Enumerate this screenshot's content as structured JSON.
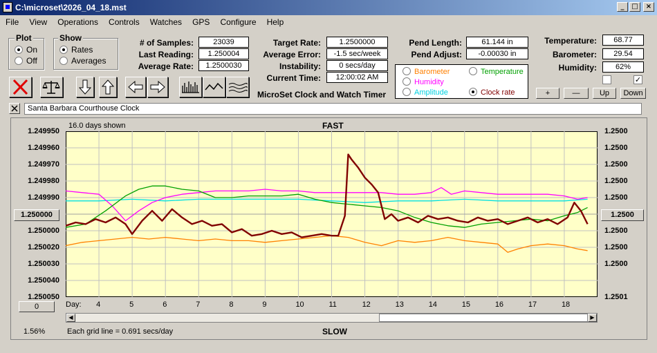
{
  "window": {
    "title": "C:\\microset\\2026_04_18.mst"
  },
  "menu": [
    "File",
    "View",
    "Operations",
    "Controls",
    "Watches",
    "GPS",
    "Configure",
    "Help"
  ],
  "plot_group": {
    "title": "Plot",
    "on": "On",
    "off": "Off",
    "selected": "On"
  },
  "show_group": {
    "title": "Show",
    "rates": "Rates",
    "averages": "Averages",
    "selected": "Rates"
  },
  "stats": {
    "samples_label": "# of Samples:",
    "samples": "23039",
    "last_reading_label": "Last Reading:",
    "last_reading": "1.250004",
    "average_rate_label": "Average Rate:",
    "average_rate": "1.2500030"
  },
  "target": {
    "target_rate_label": "Target Rate:",
    "target_rate": "1.2500000",
    "average_error_label": "Average Error:",
    "average_error": "-1.5 sec/week",
    "instability_label": "Instability:",
    "instability": "0 secs/day",
    "current_time_label": "Current Time:",
    "current_time": "12:00:02 AM",
    "app_name": "MicroSet Clock and Watch Timer"
  },
  "pendulum": {
    "length_label": "Pend Length:",
    "length": "61.144 in",
    "adjust_label": "Pend Adjust:",
    "adjust": "-0.00030 in"
  },
  "legend": {
    "barometer": "Barometer",
    "temperature": "Temperature",
    "humidity": "Humidity",
    "amplitude": "Amplitude",
    "clock_rate": "Clock rate",
    "selected": "Clock rate"
  },
  "environment": {
    "temperature_label": "Temperature:",
    "temperature": "68.77",
    "barometer_label": "Barometer:",
    "barometer": "29.54",
    "humidity_label": "Humidity:",
    "humidity": "62%"
  },
  "scale_buttons": {
    "plus": "+",
    "minus": "—",
    "up": "Up",
    "down": "Down"
  },
  "checkboxes": {
    "left": false,
    "right": true
  },
  "clock_name": "Santa Barbara Courthouse Clock",
  "chart_header": {
    "days_shown": "16.0 days shown",
    "fast": "FAST",
    "slow": "SLOW"
  },
  "center_left_button": "1.250000",
  "center_right_button": "1.2500",
  "bottom_left_button": "0",
  "zoom_percent": "1.56%",
  "grid_note": "Each grid line = 0.691 secs/day",
  "day_label": "Day:",
  "colors": {
    "plot_bg": "#ffffc8",
    "clock_rate": "#800000",
    "temperature": "#00a000",
    "humidity": "#ff00ff",
    "amplitude": "#00e0e0",
    "barometer": "#ff8000",
    "grid": "#c0c0c0"
  },
  "chart_data": {
    "type": "line",
    "x_unit": "day",
    "xlim": [
      3.0,
      19.0
    ],
    "ylim_left": [
      1.24995,
      1.25005
    ],
    "y_left_ticks": [
      "1.249950",
      "1.249960",
      "1.249970",
      "1.249980",
      "1.249990",
      "1.250000",
      "1.250020",
      "1.250030",
      "1.250040",
      "1.250050"
    ],
    "y_right_ticks": [
      "1.2500",
      "1.2500",
      "1.2500",
      "1.2500",
      "1.2500",
      "1.2500",
      "1.2500",
      "1.2500",
      "1.2501"
    ],
    "x_ticks": [
      "4",
      "5",
      "6",
      "7",
      "8",
      "9",
      "10",
      "11",
      "12",
      "13",
      "14",
      "15",
      "16",
      "17",
      "18"
    ],
    "series": [
      {
        "name": "Clock rate",
        "color": "#800000",
        "width": 2.4,
        "x": [
          3.0,
          3.3,
          3.6,
          3.9,
          4.2,
          4.5,
          4.8,
          5.0,
          5.3,
          5.6,
          5.9,
          6.2,
          6.5,
          6.8,
          7.1,
          7.4,
          7.7,
          8.0,
          8.3,
          8.6,
          8.9,
          9.2,
          9.5,
          9.8,
          10.1,
          10.4,
          10.7,
          11.0,
          11.2,
          11.4,
          11.5,
          11.6,
          11.8,
          12.0,
          12.2,
          12.4,
          12.6,
          12.8,
          13.0,
          13.3,
          13.6,
          13.9,
          14.2,
          14.5,
          14.8,
          15.1,
          15.4,
          15.7,
          16.0,
          16.3,
          16.6,
          16.9,
          17.2,
          17.5,
          17.8,
          18.1,
          18.3,
          18.5,
          18.7
        ],
        "y": [
          1.250007,
          1.250005,
          1.250006,
          1.250003,
          1.250005,
          1.250002,
          1.250006,
          1.250012,
          1.250004,
          1.249998,
          1.250004,
          1.249997,
          1.250002,
          1.250006,
          1.250004,
          1.250007,
          1.250006,
          1.250011,
          1.250009,
          1.250013,
          1.250012,
          1.25001,
          1.250012,
          1.250011,
          1.250014,
          1.250013,
          1.250012,
          1.250013,
          1.250013,
          1.250001,
          1.249964,
          1.249967,
          1.249972,
          1.249978,
          1.249982,
          1.249987,
          1.250003,
          1.25,
          1.250004,
          1.250002,
          1.250005,
          1.250001,
          1.250003,
          1.250002,
          1.250004,
          1.250005,
          1.250002,
          1.250004,
          1.250003,
          1.250006,
          1.250004,
          1.250002,
          1.250005,
          1.250003,
          1.250006,
          1.250002,
          1.249993,
          1.249998,
          1.250006
        ]
      },
      {
        "name": "Temperature",
        "color": "#00a000",
        "width": 1.3,
        "x": [
          3.0,
          3.6,
          4.2,
          4.8,
          5.2,
          5.6,
          6.0,
          6.5,
          7.0,
          7.5,
          8.0,
          8.5,
          9.0,
          9.5,
          10.0,
          10.5,
          11.0,
          11.5,
          12.0,
          12.5,
          13.0,
          13.5,
          14.0,
          14.5,
          15.0,
          15.5,
          16.0,
          16.5,
          17.0,
          17.5,
          18.0,
          18.4,
          18.7
        ],
        "y": [
          1.250008,
          1.250006,
          1.249998,
          1.249989,
          1.249985,
          1.249983,
          1.249983,
          1.249985,
          1.249986,
          1.24999,
          1.24999,
          1.249989,
          1.249989,
          1.249989,
          1.249988,
          1.249991,
          1.249993,
          1.249994,
          1.249995,
          1.249996,
          1.249998,
          1.250002,
          1.250005,
          1.250007,
          1.250008,
          1.250006,
          1.250005,
          1.250004,
          1.250003,
          1.250004,
          1.250001,
          1.249999,
          1.249996
        ]
      },
      {
        "name": "Humidity",
        "color": "#ff00ff",
        "width": 1.3,
        "x": [
          3.0,
          3.5,
          4.0,
          4.4,
          4.8,
          5.2,
          5.6,
          6.0,
          6.5,
          7.0,
          7.5,
          8.0,
          8.5,
          9.0,
          9.5,
          10.0,
          10.5,
          11.0,
          11.5,
          12.0,
          12.5,
          13.0,
          13.5,
          14.0,
          14.3,
          14.6,
          15.0,
          15.5,
          16.0,
          16.5,
          17.0,
          17.5,
          18.0,
          18.4,
          18.7
        ],
        "y": [
          1.249986,
          1.249987,
          1.249988,
          1.249995,
          1.250004,
          1.249998,
          1.249993,
          1.24999,
          1.249988,
          1.249987,
          1.249986,
          1.249986,
          1.249986,
          1.249985,
          1.249986,
          1.249986,
          1.249987,
          1.249987,
          1.249987,
          1.249987,
          1.249987,
          1.249988,
          1.249988,
          1.249987,
          1.249984,
          1.249988,
          1.249986,
          1.249987,
          1.249988,
          1.249988,
          1.249988,
          1.249988,
          1.249989,
          1.249991,
          1.24999
        ]
      },
      {
        "name": "Amplitude",
        "color": "#00e0e0",
        "width": 1.3,
        "x": [
          3.0,
          4.0,
          5.0,
          6.0,
          7.0,
          8.0,
          9.0,
          10.0,
          11.0,
          12.0,
          13.0,
          14.0,
          15.0,
          16.0,
          17.0,
          18.0,
          18.7
        ],
        "y": [
          1.249992,
          1.249992,
          1.249991,
          1.249992,
          1.249991,
          1.249991,
          1.249991,
          1.249991,
          1.249992,
          1.249993,
          1.249992,
          1.249992,
          1.249991,
          1.249992,
          1.249992,
          1.249992,
          1.249991
        ]
      },
      {
        "name": "Barometer",
        "color": "#ff8000",
        "width": 1.3,
        "x": [
          3.0,
          3.5,
          4.0,
          4.5,
          5.0,
          5.5,
          6.0,
          6.5,
          7.0,
          7.5,
          8.0,
          8.5,
          9.0,
          9.5,
          10.0,
          10.5,
          11.0,
          11.5,
          12.0,
          12.5,
          13.0,
          13.5,
          14.0,
          14.5,
          15.0,
          15.5,
          16.0,
          16.3,
          16.6,
          17.0,
          17.5,
          18.0,
          18.4,
          18.7
        ],
        "y": [
          1.250019,
          1.250017,
          1.250016,
          1.250015,
          1.250014,
          1.250015,
          1.250014,
          1.250015,
          1.250016,
          1.250015,
          1.250016,
          1.250016,
          1.250017,
          1.250016,
          1.250015,
          1.250014,
          1.250013,
          1.250014,
          1.250017,
          1.250019,
          1.250016,
          1.250017,
          1.250016,
          1.250014,
          1.250016,
          1.250017,
          1.250018,
          1.250023,
          1.250021,
          1.250019,
          1.250018,
          1.250019,
          1.250021,
          1.250022
        ]
      }
    ]
  }
}
